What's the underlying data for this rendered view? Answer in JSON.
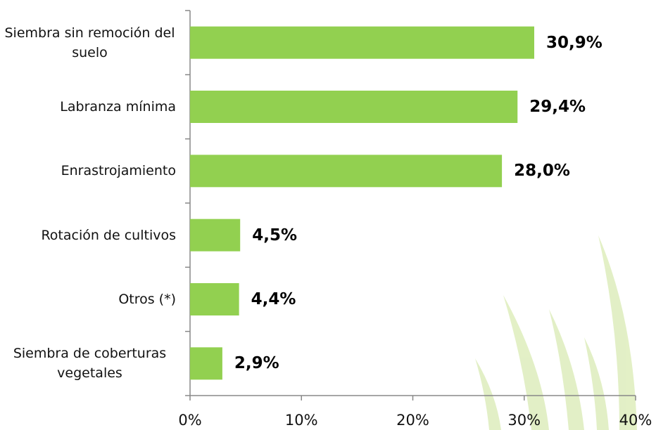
{
  "chart_data": {
    "type": "hbar",
    "categories": [
      "Siembra sin remoción del suelo",
      "Labranza mínima",
      "Enrastrojamiento",
      "Rotación de cultivos",
      "Otros (*)",
      "Siembra de coberturas vegetales"
    ],
    "values": [
      30.9,
      29.4,
      28.0,
      4.5,
      4.4,
      2.9
    ],
    "value_labels": [
      "30,9%",
      "29,4%",
      "28,0%",
      "4,5%",
      "4,4%",
      "2,9%"
    ],
    "color": "#92d050",
    "xlim": [
      0,
      40
    ],
    "xticks": [
      {
        "value": 0,
        "label": "0%"
      },
      {
        "value": 10,
        "label": "10%"
      },
      {
        "value": 20,
        "label": "20%"
      },
      {
        "value": 30,
        "label": "30%"
      },
      {
        "value": 40,
        "label": "40%"
      }
    ],
    "grid": false
  }
}
